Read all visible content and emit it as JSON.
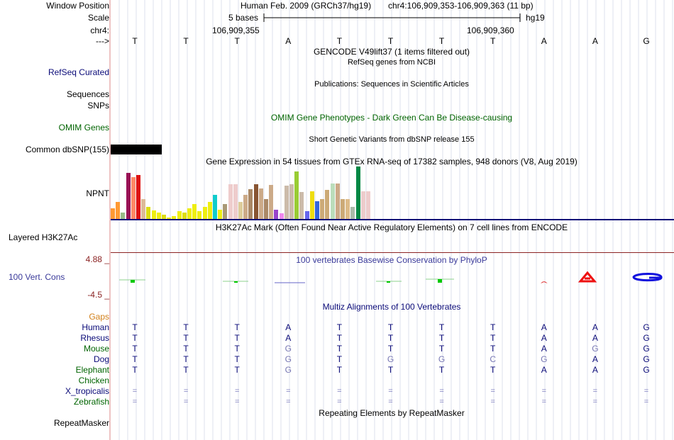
{
  "header": {
    "window_position_label": "Window Position",
    "scale_label": "Scale",
    "chrom_label": "chr4:",
    "strand_label": "--->",
    "assembly_text": "Human Feb. 2009 (GRCh37/hg19)",
    "position_text": "chr4:106,909,353-106,909,363 (11 bp)",
    "scale_text": "5 bases",
    "scale_db": "hg19",
    "coord_left": "106,909,355",
    "coord_right": "106,909,360",
    "bases": [
      "T",
      "T",
      "T",
      "A",
      "T",
      "T",
      "T",
      "T",
      "A",
      "A",
      "G"
    ]
  },
  "tracks": {
    "gencode_title": "GENCODE V49lift37 (1 items filtered out)",
    "refseq_subtitle": "RefSeq genes from NCBI",
    "refseq_label": "RefSeq Curated",
    "pubs_subtitle": "Publications: Sequences in Scientific Articles",
    "sequences_label": "Sequences",
    "snps_label": "SNPs",
    "omim_title": "OMIM Gene Phenotypes - Dark Green Can Be Disease-causing",
    "omim_label": "OMIM Genes",
    "dbsnp_subtitle": "Short Genetic Variants from dbSNP release 155",
    "dbsnp_label": "Common dbSNP(155)",
    "gtex_title": "Gene Expression in 54 tissues from GTEx RNA-seq of 17382 samples, 948 donors (V8, Aug 2019)",
    "gtex_gene": "NPNT",
    "h3k27_title": "H3K27Ac Mark (Often Found Near Active Regulatory Elements) on 7 cell lines from ENCODE",
    "h3k27_label": "Layered H3K27Ac",
    "phylop_top": "4.88 _",
    "phylop_bottom": "-4.5 _",
    "phylop_label": "100 Vert. Cons",
    "phylop_title": "100 vertebrates Basewise Conservation by PhyloP",
    "gaps_label": "Gaps",
    "multiz_title": "Multiz Alignments of 100 Vertebrates",
    "repeat_title": "Repeating Elements by RepeatMasker",
    "repeat_label": "RepeatMasker"
  },
  "colors": {
    "navy": "#0a0a78",
    "green": "#006400",
    "orange": "#d2801a",
    "darkred": "#8b2323",
    "conservation_blue": "#3a3a9a",
    "grey_base": "#7878b4",
    "dbsnp_bar": "#000000"
  },
  "gtex_bars": [
    {
      "color": "#ff9933",
      "level": 0.23
    },
    {
      "color": "#ff9933",
      "level": 0.37
    },
    {
      "color": "#99bb88",
      "level": 0.15
    },
    {
      "color": "#991155",
      "level": 0.97
    },
    {
      "color": "#ff8866",
      "level": 0.88
    },
    {
      "color": "#dd1111",
      "level": 0.92
    },
    {
      "color": "#ddbb99",
      "level": 0.43
    },
    {
      "color": "#dddd11",
      "level": 0.27
    },
    {
      "color": "#eeee11",
      "level": 0.19
    },
    {
      "color": "#eeee11",
      "level": 0.14
    },
    {
      "color": "#dddd11",
      "level": 0.11
    },
    {
      "color": "#eeee11",
      "level": 0.05
    },
    {
      "color": "#eeee11",
      "level": 0.07
    },
    {
      "color": "#eeee11",
      "level": 0.17
    },
    {
      "color": "#dddd11",
      "level": 0.14
    },
    {
      "color": "#eeee11",
      "level": 0.23
    },
    {
      "color": "#eeee11",
      "level": 0.32
    },
    {
      "color": "#eeee11",
      "level": 0.18
    },
    {
      "color": "#eeee11",
      "level": 0.27
    },
    {
      "color": "#eeee11",
      "level": 0.37
    },
    {
      "color": "#11cccc",
      "level": 0.52
    },
    {
      "color": "#eeee11",
      "level": 0.21
    },
    {
      "color": "#aa9977",
      "level": 0.32
    },
    {
      "color": "#eecccc",
      "level": 0.73
    },
    {
      "color": "#eecccc",
      "level": 0.73
    },
    {
      "color": "#ddcc99",
      "level": 0.37
    },
    {
      "color": "#ccaa88",
      "level": 0.52
    },
    {
      "color": "#aa8866",
      "level": 0.63
    },
    {
      "color": "#885533",
      "level": 0.73
    },
    {
      "color": "#ccaa88",
      "level": 0.65
    },
    {
      "color": "#aa8866",
      "level": 0.43
    },
    {
      "color": "#ccaa88",
      "level": 0.72
    },
    {
      "color": "#9944cc",
      "level": 0.21
    },
    {
      "color": "#ee88ee",
      "level": 0.13
    },
    {
      "color": "#ccbbaa",
      "level": 0.71
    },
    {
      "color": "#ccbbaa",
      "level": 0.73
    },
    {
      "color": "#99cc33",
      "level": 1.0
    },
    {
      "color": "#ccbbaa",
      "level": 0.57
    },
    {
      "color": "#6666ee",
      "level": 0.17
    },
    {
      "color": "#eedd11",
      "level": 0.59
    },
    {
      "color": "#3366dd",
      "level": 0.38
    },
    {
      "color": "#ccaa77",
      "level": 0.43
    },
    {
      "color": "#ccaa77",
      "level": 0.62
    },
    {
      "color": "#bbddbb",
      "level": 0.75
    },
    {
      "color": "#ccaa88",
      "level": 0.75
    },
    {
      "color": "#ccaa77",
      "level": 0.43
    },
    {
      "color": "#ddbb88",
      "level": 0.43
    },
    {
      "color": "#aabbaa",
      "level": 0.27
    },
    {
      "color": "#008844",
      "level": 1.1
    },
    {
      "color": "#eecccc",
      "level": 0.59
    },
    {
      "color": "#eecccc",
      "level": 0.59
    }
  ],
  "alignments": [
    {
      "species": "Human",
      "color": "#0a0a78",
      "bases": [
        "T",
        "T",
        "T",
        "A",
        "T",
        "T",
        "T",
        "T",
        "A",
        "A",
        "G"
      ],
      "dim": []
    },
    {
      "species": "Rhesus",
      "color": "#0a0a78",
      "bases": [
        "T",
        "T",
        "T",
        "A",
        "T",
        "T",
        "T",
        "T",
        "A",
        "A",
        "G"
      ],
      "dim": []
    },
    {
      "species": "Mouse",
      "color": "#006400",
      "bases": [
        "T",
        "T",
        "T",
        "G",
        "T",
        "T",
        "T",
        "T",
        "A",
        "G",
        "G"
      ],
      "dim": [
        3,
        9
      ]
    },
    {
      "species": "Dog",
      "color": "#0a0a78",
      "bases": [
        "T",
        "T",
        "T",
        "G",
        "T",
        "G",
        "G",
        "C",
        "G",
        "A",
        "G"
      ],
      "dim": [
        3,
        5,
        6,
        7,
        8
      ]
    },
    {
      "species": "Elephant",
      "color": "#006400",
      "bases": [
        "T",
        "T",
        "T",
        "G",
        "T",
        "T",
        "T",
        "T",
        "A",
        "A",
        "G"
      ],
      "dim": [
        3
      ]
    },
    {
      "species": "Chicken",
      "color": "#006400",
      "bases": [],
      "dim": []
    },
    {
      "species": "X_tropicalis",
      "color": "#0a0a78",
      "bases": [
        "=",
        "=",
        "=",
        "=",
        "=",
        "=",
        "=",
        "=",
        "=",
        "=",
        "="
      ],
      "dim": []
    },
    {
      "species": "Zebrafish",
      "color": "#006400",
      "bases": [
        "=",
        "=",
        "=",
        "=",
        "=",
        "=",
        "=",
        "=",
        "=",
        "=",
        "="
      ],
      "dim": []
    }
  ]
}
